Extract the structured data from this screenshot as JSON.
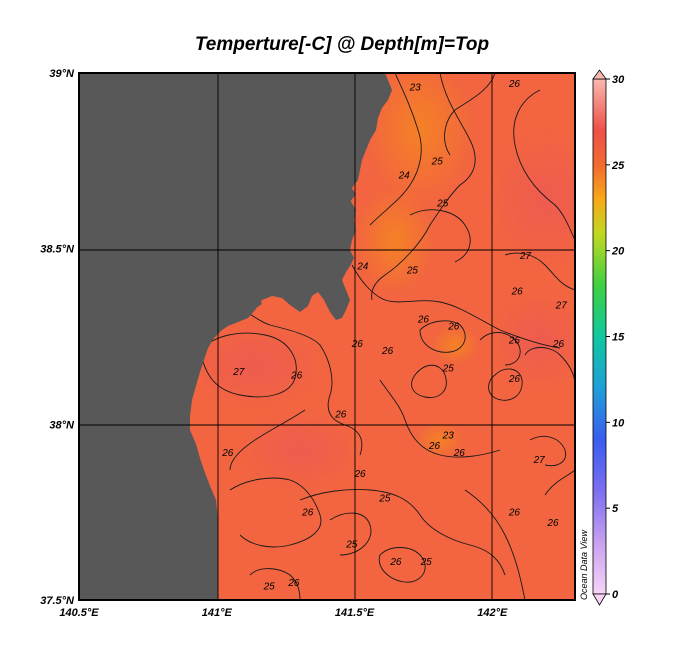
{
  "title": "Temperture[-C] @ Depth[m]=Top",
  "watermark": "Ocean Data View",
  "colors": {
    "land": "#585858",
    "sea": "#f26540",
    "sea_warm": "#f0604a",
    "sea_cool": "#f47a28",
    "grid": "#000000",
    "frame": "#000000"
  },
  "chart_data": {
    "type": "heatmap",
    "variable": "Temperture[-C]",
    "depth": "Top",
    "xlim": [
      140.5,
      142.3
    ],
    "ylim": [
      37.5,
      39.0
    ],
    "x_ticks": [
      140.5,
      141.0,
      141.5,
      142.0
    ],
    "x_tick_labels": [
      "140.5°E",
      "141°E",
      "141.5°E",
      "142°E"
    ],
    "y_ticks": [
      39.0,
      38.5,
      38.0,
      37.5
    ],
    "y_tick_labels": [
      "39°N",
      "38.5°N",
      "38°N",
      "37.5°N"
    ],
    "colorbar": {
      "range": [
        0,
        30
      ],
      "ticks": [
        30,
        25,
        20,
        15,
        10,
        5,
        0
      ],
      "tick_labels": [
        "30",
        "25",
        "20",
        "15",
        "10",
        "5",
        "0"
      ],
      "stops": [
        {
          "value": 0,
          "color": "#f7d3f7"
        },
        {
          "value": 3,
          "color": "#c8a0f0"
        },
        {
          "value": 6,
          "color": "#7b6ff0"
        },
        {
          "value": 9,
          "color": "#3a5cf0"
        },
        {
          "value": 12,
          "color": "#1f9fd8"
        },
        {
          "value": 15,
          "color": "#10c8a0"
        },
        {
          "value": 18,
          "color": "#40d040"
        },
        {
          "value": 21,
          "color": "#c0d820"
        },
        {
          "value": 23,
          "color": "#f8a818"
        },
        {
          "value": 25,
          "color": "#f26a30"
        },
        {
          "value": 27,
          "color": "#ee5048"
        },
        {
          "value": 30,
          "color": "#f8b8b0"
        }
      ]
    },
    "contour_levels": [
      23,
      24,
      25,
      26,
      27
    ],
    "contour_labels": [
      {
        "text": "23",
        "lon": 141.72,
        "lat": 38.95
      },
      {
        "text": "26",
        "lon": 142.08,
        "lat": 38.96
      },
      {
        "text": "24",
        "lon": 141.68,
        "lat": 38.7
      },
      {
        "text": "25",
        "lon": 141.8,
        "lat": 38.74
      },
      {
        "text": "25",
        "lon": 141.82,
        "lat": 38.62
      },
      {
        "text": "27",
        "lon": 142.12,
        "lat": 38.47
      },
      {
        "text": "24",
        "lon": 141.53,
        "lat": 38.44
      },
      {
        "text": "25",
        "lon": 141.71,
        "lat": 38.43
      },
      {
        "text": "26",
        "lon": 142.09,
        "lat": 38.37
      },
      {
        "text": "26",
        "lon": 141.75,
        "lat": 38.29
      },
      {
        "text": "26",
        "lon": 141.86,
        "lat": 38.27
      },
      {
        "text": "26",
        "lon": 141.51,
        "lat": 38.22
      },
      {
        "text": "26",
        "lon": 141.62,
        "lat": 38.2
      },
      {
        "text": "27",
        "lon": 142.25,
        "lat": 38.33
      },
      {
        "text": "26",
        "lon": 142.08,
        "lat": 38.23
      },
      {
        "text": "26",
        "lon": 142.24,
        "lat": 38.22
      },
      {
        "text": "27",
        "lon": 141.08,
        "lat": 38.14
      },
      {
        "text": "26",
        "lon": 141.29,
        "lat": 38.13
      },
      {
        "text": "25",
        "lon": 141.84,
        "lat": 38.15
      },
      {
        "text": "26",
        "lon": 142.08,
        "lat": 38.12
      },
      {
        "text": "26",
        "lon": 141.45,
        "lat": 38.02
      },
      {
        "text": "23",
        "lon": 141.84,
        "lat": 37.96
      },
      {
        "text": "26",
        "lon": 141.79,
        "lat": 37.93
      },
      {
        "text": "26",
        "lon": 141.88,
        "lat": 37.91
      },
      {
        "text": "26",
        "lon": 141.04,
        "lat": 37.91
      },
      {
        "text": "27",
        "lon": 142.17,
        "lat": 37.89
      },
      {
        "text": "26",
        "lon": 141.52,
        "lat": 37.85
      },
      {
        "text": "25",
        "lon": 141.61,
        "lat": 37.78
      },
      {
        "text": "26",
        "lon": 141.33,
        "lat": 37.74
      },
      {
        "text": "26",
        "lon": 142.08,
        "lat": 37.74
      },
      {
        "text": "26",
        "lon": 142.22,
        "lat": 37.71
      },
      {
        "text": "25",
        "lon": 141.49,
        "lat": 37.65
      },
      {
        "text": "26",
        "lon": 141.65,
        "lat": 37.6
      },
      {
        "text": "25",
        "lon": 141.76,
        "lat": 37.6
      },
      {
        "text": "25",
        "lon": 141.19,
        "lat": 37.53
      },
      {
        "text": "26",
        "lon": 141.28,
        "lat": 37.54
      }
    ]
  }
}
